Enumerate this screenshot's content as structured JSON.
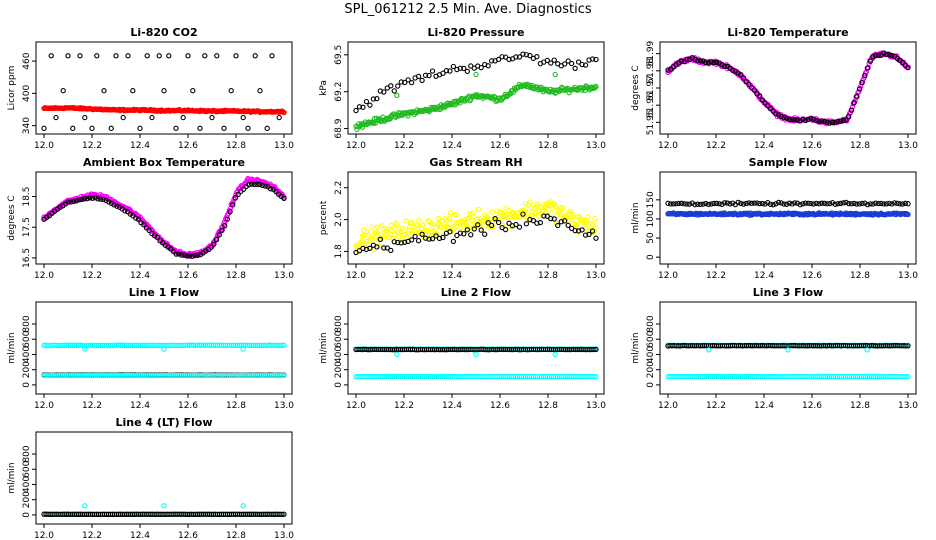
{
  "page": {
    "title": "SPL_061212  2.5 Min. Ave. Diagnostics"
  },
  "colors": {
    "red": "#ff0000",
    "green": "#22bb22",
    "magenta": "#ff00ff",
    "yellow": "#ffff00",
    "blue": "#1a3bd6",
    "cyan": "#00ffff",
    "black": "#000000"
  },
  "chart_data": [
    {
      "id": "co2",
      "type": "scatter",
      "title": "Li-820 CO2",
      "ylabel": "Licor ppm",
      "xlim": [
        12.0,
        13.0
      ],
      "ylim": [
        330,
        490
      ],
      "xticks": [
        "12.0",
        "12.2",
        "12.4",
        "12.6",
        "12.8",
        "13.0"
      ],
      "yticks": [
        "340",
        "400",
        "460"
      ],
      "series": [
        {
          "name": "sample",
          "color": "red",
          "kind": "dense",
          "x": [
            12.0,
            12.1,
            12.2,
            12.3,
            12.4,
            12.5,
            12.6,
            12.7,
            12.8,
            12.9,
            13.0
          ],
          "y": [
            372,
            373,
            371,
            369,
            369,
            368,
            368,
            367,
            367,
            366,
            366
          ],
          "noise": 2
        },
        {
          "name": "diagnostic",
          "color": "black",
          "kind": "points",
          "x": [
            12.0,
            12.03,
            12.05,
            12.08,
            12.1,
            12.12,
            12.15,
            12.17,
            12.2,
            12.22,
            12.25,
            12.28,
            12.3,
            12.33,
            12.35,
            12.37,
            12.4,
            12.43,
            12.45,
            12.48,
            12.5,
            12.52,
            12.55,
            12.58,
            12.6,
            12.62,
            12.65,
            12.67,
            12.7,
            12.72,
            12.75,
            12.78,
            12.8,
            12.83,
            12.85,
            12.88,
            12.9,
            12.93,
            12.95,
            12.98
          ],
          "y": [
            335,
            470,
            355,
            405,
            470,
            335,
            470,
            355,
            335,
            470,
            405,
            335,
            470,
            355,
            470,
            405,
            335,
            470,
            355,
            470,
            405,
            470,
            335,
            355,
            470,
            405,
            335,
            470,
            355,
            470,
            335,
            405,
            470,
            355,
            335,
            470,
            405,
            335,
            470,
            355
          ]
        }
      ]
    },
    {
      "id": "pressure",
      "type": "scatter",
      "title": "Li-820 Pressure",
      "ylabel": "kPa",
      "xlim": [
        12.0,
        13.0
      ],
      "ylim": [
        68.88,
        69.58
      ],
      "xticks": [
        "12.0",
        "12.2",
        "12.4",
        "12.6",
        "12.8",
        "13.0"
      ],
      "yticks": [
        "68.9",
        "69.2",
        "69.5"
      ],
      "series": [
        {
          "name": "sample",
          "color": "green",
          "kind": "dense",
          "x": [
            12.0,
            12.1,
            12.2,
            12.3,
            12.4,
            12.5,
            12.6,
            12.7,
            12.8,
            12.9,
            13.0
          ],
          "y": [
            68.92,
            68.97,
            69.02,
            69.05,
            69.1,
            69.17,
            69.14,
            69.26,
            69.2,
            69.22,
            69.24
          ],
          "noise": 0.03
        },
        {
          "name": "diagnostic",
          "color": "black",
          "kind": "scatter",
          "x": [
            12.0,
            12.1,
            12.2,
            12.3,
            12.4,
            12.5,
            12.6,
            12.7,
            12.8,
            12.9,
            13.0
          ],
          "y": [
            69.05,
            69.18,
            69.27,
            69.33,
            69.38,
            69.41,
            69.45,
            69.5,
            69.44,
            69.42,
            69.46
          ],
          "noise": 0.05
        },
        {
          "name": "outliers",
          "color": "green",
          "kind": "points",
          "x": [
            12.17,
            12.5,
            12.83
          ],
          "y": [
            69.17,
            69.34,
            69.34
          ]
        }
      ]
    },
    {
      "id": "li820temp",
      "type": "scatter",
      "title": "Li-820 Temperature",
      "ylabel": "degrees C",
      "xlim": [
        12.0,
        13.0
      ],
      "ylim": [
        51.945,
        51.995
      ],
      "xticks": [
        "12.0",
        "12.2",
        "12.4",
        "12.6",
        "12.8",
        "13.0"
      ],
      "yticks": [
        "51.95",
        "51.96",
        "51.97",
        "51.98",
        "51.99"
      ],
      "series": [
        {
          "name": "sample",
          "color": "magenta",
          "kind": "dense",
          "x": [
            12.0,
            12.05,
            12.1,
            12.15,
            12.2,
            12.25,
            12.3,
            12.35,
            12.4,
            12.45,
            12.5,
            12.55,
            12.6,
            12.65,
            12.7,
            12.75,
            12.8,
            12.85,
            12.9,
            12.95,
            13.0
          ],
          "y": [
            51.98,
            51.985,
            51.987,
            51.985,
            51.985,
            51.982,
            51.978,
            51.97,
            51.962,
            51.955,
            51.952,
            51.951,
            51.952,
            51.95,
            51.95,
            51.952,
            51.97,
            51.988,
            51.99,
            51.988,
            51.982
          ],
          "noise": 0.0015
        },
        {
          "name": "diagnostic",
          "color": "black",
          "kind": "follow",
          "x": [
            12.0,
            12.05,
            12.1,
            12.15,
            12.2,
            12.25,
            12.3,
            12.35,
            12.4,
            12.45,
            12.5,
            12.55,
            12.6,
            12.65,
            12.7,
            12.75,
            12.8,
            12.85,
            12.9,
            12.95,
            13.0
          ],
          "y": [
            51.98,
            51.985,
            51.987,
            51.985,
            51.985,
            51.982,
            51.978,
            51.97,
            51.962,
            51.955,
            51.952,
            51.951,
            51.952,
            51.95,
            51.95,
            51.952,
            51.97,
            51.988,
            51.99,
            51.988,
            51.982
          ],
          "noise": 0.0008
        }
      ]
    },
    {
      "id": "ambient",
      "type": "scatter",
      "title": "Ambient Box Temperature",
      "ylabel": "degrees C",
      "xlim": [
        12.0,
        13.0
      ],
      "ylim": [
        16.4,
        19.2
      ],
      "xticks": [
        "12.0",
        "12.2",
        "12.4",
        "12.6",
        "12.8",
        "13.0"
      ],
      "yticks": [
        "16.5",
        "17.5",
        "18.5"
      ],
      "series": [
        {
          "name": "sample",
          "color": "magenta",
          "kind": "dense",
          "x": [
            12.0,
            12.05,
            12.1,
            12.15,
            12.2,
            12.25,
            12.3,
            12.35,
            12.4,
            12.45,
            12.5,
            12.55,
            12.6,
            12.65,
            12.7,
            12.75,
            12.8,
            12.85,
            12.9,
            12.95,
            13.0
          ],
          "y": [
            17.8,
            18.1,
            18.35,
            18.45,
            18.55,
            18.5,
            18.3,
            18.1,
            17.8,
            17.4,
            17.0,
            16.7,
            16.6,
            16.65,
            16.9,
            17.6,
            18.6,
            19.05,
            19.0,
            18.85,
            18.5
          ],
          "noise": 0.07
        },
        {
          "name": "diagnostic",
          "color": "black",
          "kind": "follow",
          "x": [
            12.0,
            12.05,
            12.1,
            12.15,
            12.2,
            12.25,
            12.3,
            12.35,
            12.4,
            12.45,
            12.5,
            12.55,
            12.6,
            12.65,
            12.7,
            12.75,
            12.8,
            12.85,
            12.9,
            12.95,
            13.0
          ],
          "y": [
            17.75,
            18.05,
            18.3,
            18.4,
            18.45,
            18.4,
            18.2,
            18.0,
            17.7,
            17.3,
            16.95,
            16.65,
            16.55,
            16.6,
            16.85,
            17.5,
            18.5,
            18.9,
            18.9,
            18.75,
            18.45
          ],
          "noise": 0.03
        }
      ]
    },
    {
      "id": "rh",
      "type": "scatter",
      "title": "Gas Stream RH",
      "ylabel": "percent",
      "xlim": [
        12.0,
        13.0
      ],
      "ylim": [
        1.74,
        2.28
      ],
      "xticks": [
        "12.0",
        "12.2",
        "12.4",
        "12.6",
        "12.8",
        "13.0"
      ],
      "yticks": [
        "1.8",
        "2.0",
        "2.2"
      ],
      "series": [
        {
          "name": "sample",
          "color": "yellow",
          "kind": "dense",
          "x": [
            12.0,
            12.1,
            12.2,
            12.3,
            12.4,
            12.5,
            12.6,
            12.7,
            12.8,
            12.9,
            13.0
          ],
          "y": [
            1.86,
            1.9,
            1.93,
            1.95,
            1.97,
            2.0,
            2.02,
            2.05,
            2.08,
            2.0,
            1.95
          ],
          "noise": 0.09
        },
        {
          "name": "diagnostic",
          "color": "black",
          "kind": "scatter",
          "x": [
            12.0,
            12.1,
            12.2,
            12.3,
            12.4,
            12.5,
            12.6,
            12.7,
            12.8,
            12.9,
            13.0
          ],
          "y": [
            1.8,
            1.84,
            1.86,
            1.88,
            1.9,
            1.94,
            1.96,
            1.99,
            2.02,
            1.95,
            1.88
          ],
          "noise": 0.06
        }
      ]
    },
    {
      "id": "sampleflow",
      "type": "scatter",
      "title": "Sample Flow",
      "ylabel": "ml/min",
      "xlim": [
        12.0,
        13.0
      ],
      "ylim": [
        -10,
        215
      ],
      "xticks": [
        "12.0",
        "12.2",
        "12.4",
        "12.6",
        "12.8",
        "13.0"
      ],
      "yticks": [
        "0",
        "50",
        "100",
        "150"
      ],
      "series": [
        {
          "name": "sample",
          "color": "blue",
          "kind": "dense",
          "x": [
            12.0,
            13.0
          ],
          "y": [
            113,
            113
          ],
          "noise": 4
        },
        {
          "name": "diagnostic",
          "color": "black",
          "kind": "follow",
          "x": [
            12.0,
            13.0
          ],
          "y": [
            140,
            140
          ],
          "noise": 4
        }
      ]
    },
    {
      "id": "line1",
      "type": "scatter",
      "title": "Line 1 Flow",
      "ylabel": "ml/min",
      "xlim": [
        12.0,
        13.0
      ],
      "ylim": [
        -80,
        1050
      ],
      "xticks": [
        "12.0",
        "12.2",
        "12.4",
        "12.6",
        "12.8",
        "13.0"
      ],
      "yticks": [
        "0",
        "200",
        "400",
        "600",
        "800"
      ],
      "series": [
        {
          "name": "cyan",
          "color": "cyan",
          "kind": "line",
          "x": [
            12.0,
            13.0
          ],
          "y": [
            520,
            520
          ],
          "noise": 6
        },
        {
          "name": "black",
          "color": "black",
          "kind": "line",
          "x": [
            12.0,
            13.0
          ],
          "y": [
            130,
            130
          ],
          "noise": 3
        },
        {
          "name": "cyan_low",
          "color": "cyan",
          "kind": "line",
          "x": [
            12.0,
            13.0
          ],
          "y": [
            125,
            125
          ],
          "noise": 2
        },
        {
          "name": "outliers",
          "color": "cyan",
          "kind": "points",
          "x": [
            12.17,
            12.5,
            12.83
          ],
          "y": [
            470,
            470,
            470
          ]
        }
      ]
    },
    {
      "id": "line2",
      "type": "scatter",
      "title": "Line 2 Flow",
      "ylabel": "ml/min",
      "xlim": [
        12.0,
        13.0
      ],
      "ylim": [
        -80,
        1050
      ],
      "xticks": [
        "12.0",
        "12.2",
        "12.4",
        "12.6",
        "12.8",
        "13.0"
      ],
      "yticks": [
        "0",
        "200",
        "400",
        "600",
        "800"
      ],
      "series": [
        {
          "name": "cyan_low",
          "color": "cyan",
          "kind": "line",
          "x": [
            12.0,
            13.0
          ],
          "y": [
            110,
            110
          ],
          "noise": 2
        },
        {
          "name": "cyan",
          "color": "cyan",
          "kind": "line",
          "x": [
            12.0,
            13.0
          ],
          "y": [
            470,
            470
          ],
          "noise": 3
        },
        {
          "name": "black",
          "color": "black",
          "kind": "line",
          "x": [
            12.0,
            13.0
          ],
          "y": [
            465,
            465
          ],
          "noise": 4
        },
        {
          "name": "outliers",
          "color": "cyan",
          "kind": "points",
          "x": [
            12.17,
            12.5,
            12.83
          ],
          "y": [
            400,
            400,
            400
          ]
        }
      ]
    },
    {
      "id": "line3",
      "type": "scatter",
      "title": "Line 3 Flow",
      "ylabel": "ml/min",
      "xlim": [
        12.0,
        13.0
      ],
      "ylim": [
        -80,
        1050
      ],
      "xticks": [
        "12.0",
        "12.2",
        "12.4",
        "12.6",
        "12.8",
        "13.0"
      ],
      "yticks": [
        "0",
        "200",
        "400",
        "600",
        "800"
      ],
      "series": [
        {
          "name": "cyan_low",
          "color": "cyan",
          "kind": "line",
          "x": [
            12.0,
            13.0
          ],
          "y": [
            110,
            110
          ],
          "noise": 2
        },
        {
          "name": "cyan",
          "color": "cyan",
          "kind": "line",
          "x": [
            12.0,
            13.0
          ],
          "y": [
            520,
            520
          ],
          "noise": 3
        },
        {
          "name": "black",
          "color": "black",
          "kind": "line",
          "x": [
            12.0,
            13.0
          ],
          "y": [
            515,
            515
          ],
          "noise": 4
        },
        {
          "name": "outliers",
          "color": "cyan",
          "kind": "points",
          "x": [
            12.17,
            12.5,
            12.83
          ],
          "y": [
            460,
            460,
            460
          ]
        }
      ]
    },
    {
      "id": "line4",
      "type": "scatter",
      "title": "Line 4 (LT) Flow",
      "ylabel": "ml/min",
      "xlim": [
        12.0,
        13.0
      ],
      "ylim": [
        -80,
        1050
      ],
      "xticks": [
        "12.0",
        "12.2",
        "12.4",
        "12.6",
        "12.8",
        "13.0"
      ],
      "yticks": [
        "0",
        "200",
        "400",
        "600",
        "800"
      ],
      "series": [
        {
          "name": "cyan",
          "color": "cyan",
          "kind": "line",
          "x": [
            12.0,
            13.0
          ],
          "y": [
            10,
            10
          ],
          "noise": 2
        },
        {
          "name": "black",
          "color": "black",
          "kind": "line",
          "x": [
            12.0,
            13.0
          ],
          "y": [
            8,
            8
          ],
          "noise": 2
        },
        {
          "name": "outliers",
          "color": "cyan",
          "kind": "points",
          "x": [
            12.17,
            12.5,
            12.83
          ],
          "y": [
            120,
            120,
            120
          ]
        }
      ]
    }
  ]
}
